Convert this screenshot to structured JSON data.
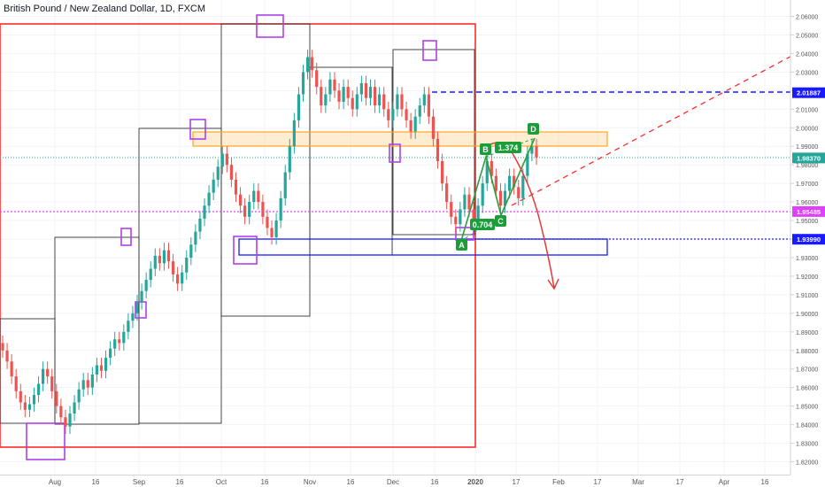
{
  "chart_data": {
    "type": "candlestick",
    "title": "British Pound / New Zealand Dollar, 1D, FXCM",
    "xlabel": "",
    "ylabel": "",
    "ylim": [
      1.818,
      2.067
    ],
    "x_ticks": [
      "Aug",
      "16",
      "Sep",
      "16",
      "Oct",
      "16",
      "Nov",
      "16",
      "Dec",
      "16",
      "2020",
      "17",
      "Feb",
      "17",
      "Mar",
      "17",
      "Apr",
      "16"
    ],
    "y_ticks": [
      "2.06000",
      "2.05000",
      "2.04000",
      "2.03000",
      "2.02000",
      "2.01000",
      "2.00000",
      "1.99000",
      "1.98000",
      "1.97000",
      "1.96000",
      "1.95000",
      "1.94000",
      "1.93000",
      "1.92000",
      "1.91000",
      "1.90000",
      "1.89000",
      "1.88000",
      "1.87000",
      "1.86000",
      "1.85000",
      "1.84000",
      "1.83000",
      "1.82000"
    ],
    "y_values": [
      2.06,
      2.05,
      2.04,
      2.03,
      2.02,
      2.01,
      2.0,
      1.99,
      1.98,
      1.97,
      1.96,
      1.95,
      1.94,
      1.93,
      1.92,
      1.91,
      1.9,
      1.89,
      1.88,
      1.87,
      1.86,
      1.85,
      1.84,
      1.83,
      1.82
    ],
    "price_labels": [
      {
        "text": "2.01887",
        "value": 2.01887,
        "color": "#1a1aff"
      },
      {
        "text": "1.98370",
        "value": 1.9837,
        "color": "#26a69a"
      },
      {
        "text": "1.95485",
        "value": 1.95485,
        "color": "#e040fb"
      },
      {
        "text": "1.93990",
        "value": 1.9399,
        "color": "#1a1aff"
      }
    ],
    "candles": [
      1.88,
      1.874,
      1.866,
      1.858,
      1.852,
      1.848,
      1.851,
      1.856,
      1.862,
      1.87,
      1.866,
      1.858,
      1.85,
      1.844,
      1.839,
      1.846,
      1.852,
      1.859,
      1.864,
      1.86,
      1.867,
      1.872,
      1.869,
      1.876,
      1.881,
      1.886,
      1.884,
      1.89,
      1.896,
      1.9,
      1.906,
      1.912,
      1.918,
      1.924,
      1.931,
      1.927,
      1.934,
      1.928,
      1.921,
      1.916,
      1.922,
      1.93,
      1.937,
      1.944,
      1.951,
      1.958,
      1.965,
      1.972,
      1.979,
      1.986,
      1.98,
      1.972,
      1.964,
      1.958,
      1.952,
      1.96,
      1.966,
      1.96,
      1.952,
      1.946,
      1.941,
      1.95,
      1.962,
      1.976,
      1.99,
      2.004,
      2.018,
      2.03,
      2.038,
      2.031,
      2.022,
      2.012,
      2.018,
      2.026,
      2.02,
      2.014,
      2.022,
      2.016,
      2.01,
      2.018,
      2.024,
      2.016,
      2.022,
      2.012,
      2.018,
      2.01,
      2.004,
      2.01,
      2.018,
      2.01,
      2.004,
      1.998,
      2.006,
      2.012,
      2.018,
      2.006,
      1.994,
      1.982,
      1.97,
      1.96,
      1.952,
      1.948,
      1.956,
      1.964,
      1.956,
      1.95,
      1.958,
      1.97,
      1.982,
      1.974,
      1.966,
      1.958,
      1.966,
      1.974,
      1.968,
      1.962,
      1.974,
      1.986,
      1.99,
      1.984
    ],
    "annotations": [
      "A",
      "B",
      "C",
      "D",
      "0.704",
      "1.374"
    ]
  }
}
